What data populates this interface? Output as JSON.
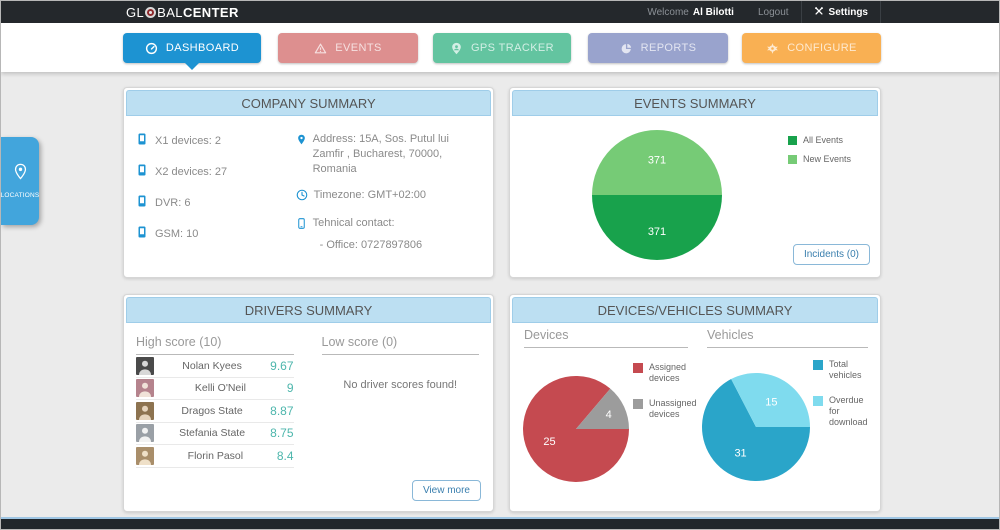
{
  "topbar": {
    "logo_gl": "GL",
    "logo_bal": "BAL",
    "logo_center": "CENTER",
    "welcome_label": "Welcome",
    "username": "Al Bilotti",
    "logout_label": "Logout",
    "settings_label": "Settings"
  },
  "nav": {
    "items": [
      {
        "label": "DASHBOARD",
        "color": "#1d93d2",
        "active": true,
        "icon": "gauge-icon"
      },
      {
        "label": "EVENTS",
        "color": "#dd8f8f",
        "active": false,
        "icon": "warning-icon"
      },
      {
        "label": "GPS TRACKER",
        "color": "#63c4a0",
        "active": false,
        "icon": "person-pin-icon"
      },
      {
        "label": "REPORTS",
        "color": "#99a3cd",
        "active": false,
        "icon": "pie-icon"
      },
      {
        "label": "CONFIGURE",
        "color": "#f9b053",
        "active": false,
        "icon": "gear-icon"
      }
    ]
  },
  "locations_tab": {
    "label": "LOCATIONS"
  },
  "panels": {
    "company": {
      "title": "COMPANY SUMMARY",
      "device_counts": [
        "X1 devices: 2",
        "X2 devices: 27",
        "DVR: 6",
        "GSM: 10"
      ],
      "address": "Address: 15A, Sos. Putul lui Zamfir , Bucharest, 70000, Romania",
      "timezone": "Timezone: GMT+02:00",
      "contact_label": "Tehnical contact:",
      "contact_office": "- Office: 0727897806"
    },
    "events": {
      "title": "EVENTS SUMMARY",
      "incidents_button": "Incidents (0)"
    },
    "drivers": {
      "title": "DRIVERS SUMMARY",
      "high_header": "High score (10)",
      "low_header": "Low score (0)",
      "rows": [
        {
          "name": "Nolan Kyees",
          "score": "9.67"
        },
        {
          "name": "Kelli O'Neil",
          "score": "9"
        },
        {
          "name": "Dragos State",
          "score": "8.87"
        },
        {
          "name": "Stefania State",
          "score": "8.75"
        },
        {
          "name": "Florin Pasol",
          "score": "8.4"
        }
      ],
      "empty_text": "No driver scores found!",
      "view_more_button": "View more"
    },
    "devices_vehicles": {
      "title": "DEVICES/VEHICLES SUMMARY",
      "devices_header": "Devices",
      "vehicles_header": "Vehicles"
    }
  },
  "chart_data": [
    {
      "type": "pie",
      "title": "Events Summary",
      "labels": [
        "All Events",
        "New Events"
      ],
      "values": [
        371,
        371
      ],
      "colors": [
        "#18a24c",
        "#76cb76"
      ],
      "data_labels": "values",
      "legend_position": "right",
      "start_angle_deg": 0,
      "direction": "clockwise"
    },
    {
      "type": "pie",
      "title": "Devices",
      "labels": [
        "Assigned devices",
        "Unassigned devices"
      ],
      "values": [
        25,
        4
      ],
      "colors": [
        "#c54a50",
        "#9c9c9c"
      ],
      "data_labels": "values",
      "legend_position": "right",
      "start_angle_deg": 0,
      "direction": "clockwise"
    },
    {
      "type": "pie",
      "title": "Vehicles",
      "labels": [
        "Total vehicles",
        "Overdue for download"
      ],
      "values": [
        31,
        15
      ],
      "colors": [
        "#2aa5c9",
        "#7fdbee"
      ],
      "data_labels": "values",
      "legend_position": "right",
      "start_angle_deg": 0,
      "direction": "clockwise"
    }
  ]
}
